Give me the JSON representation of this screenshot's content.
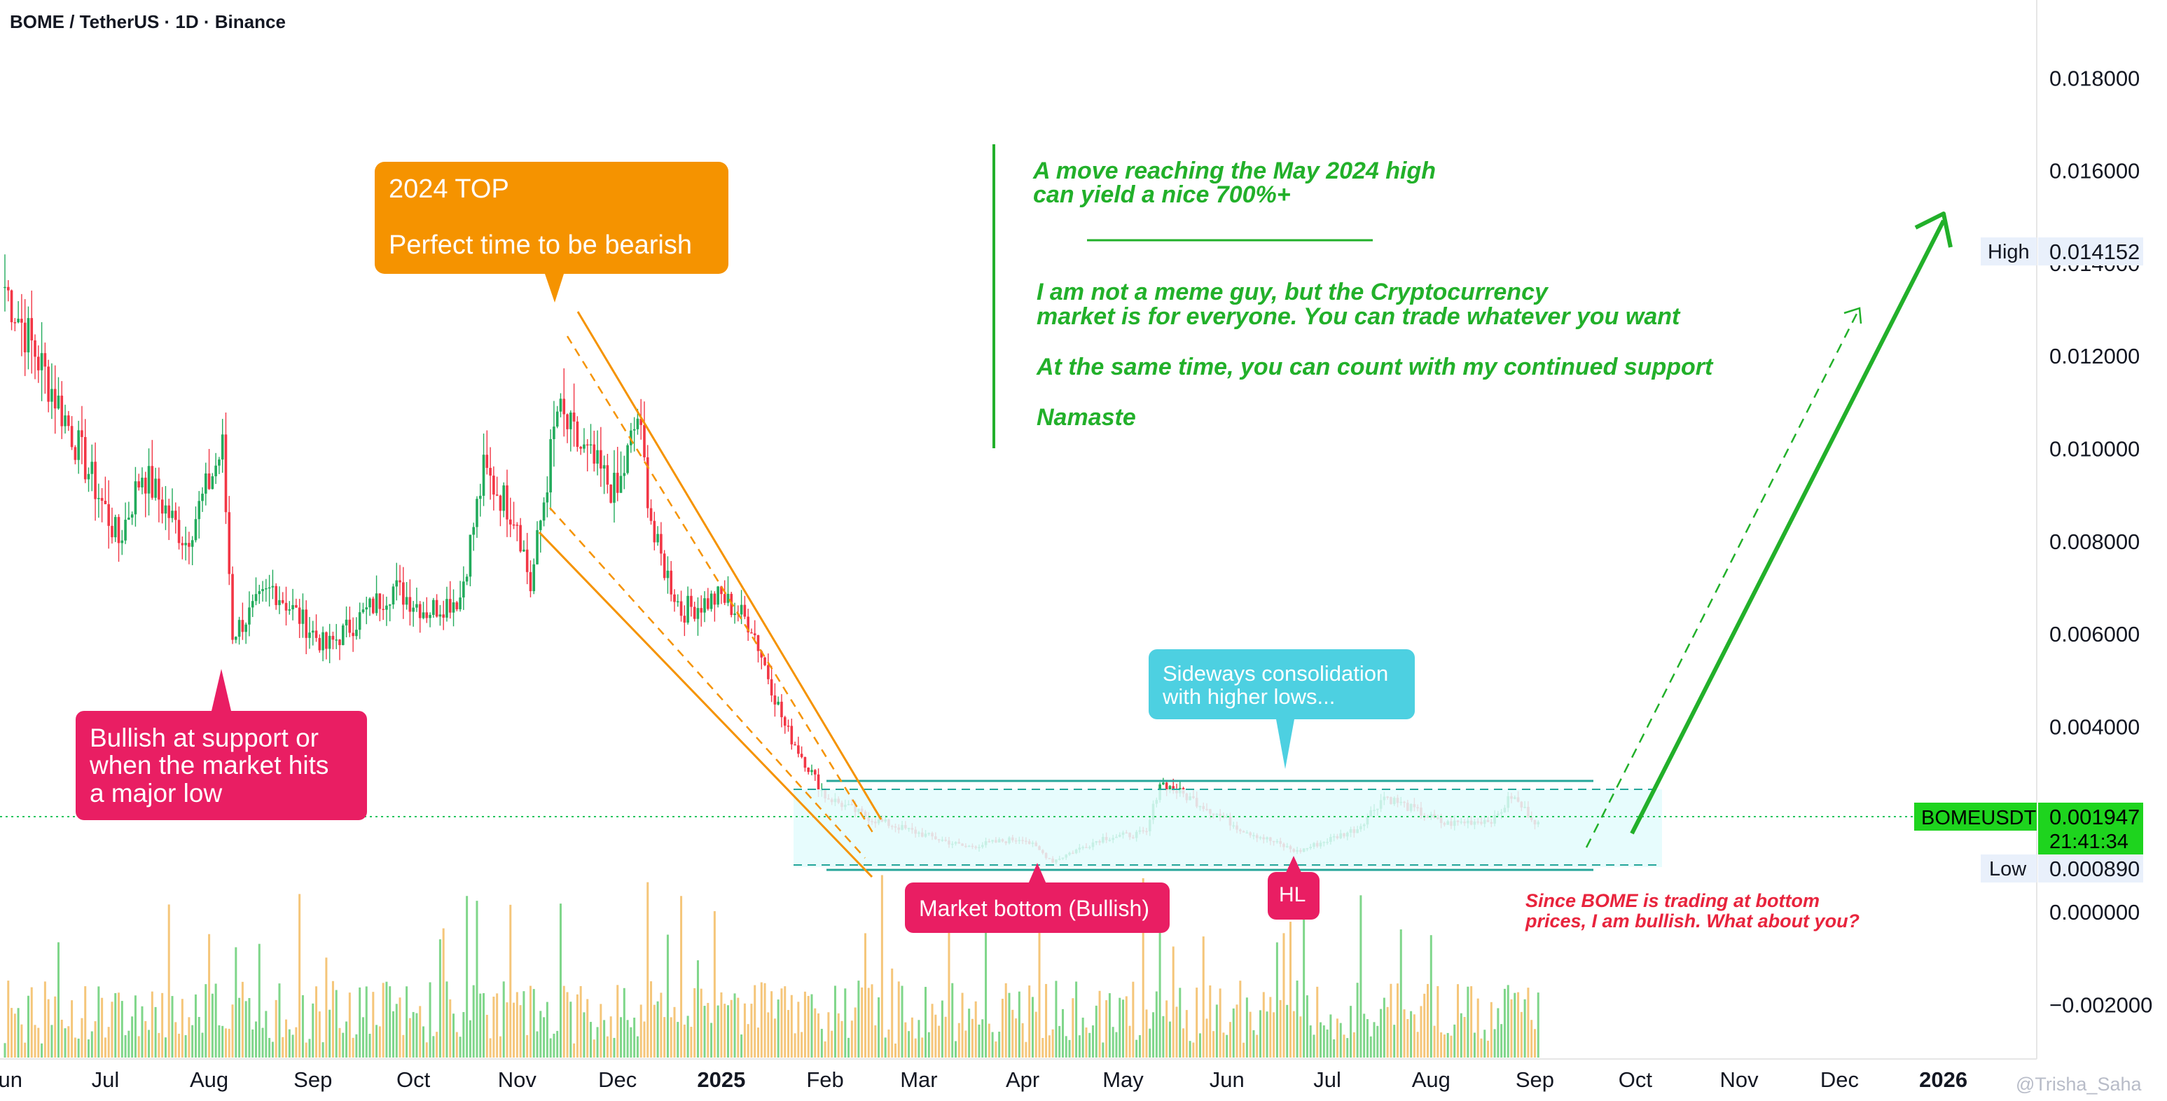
{
  "header": {
    "title": "BOME / TetherUS · 1D · Binance"
  },
  "watermark": "@Trisha_Saha",
  "price_axis": {
    "ticks": [
      "0.018000",
      "0.016000",
      "0.014000",
      "0.012000",
      "0.010000",
      "0.008000",
      "0.006000",
      "0.004000",
      "0.000000",
      "−0.002000"
    ],
    "high": {
      "label": "High",
      "value": "0.014152"
    },
    "low": {
      "label": "Low",
      "value": "0.000890"
    },
    "current": {
      "symbol": "BOMEUSDT",
      "value": "0.001947",
      "countdown": "21:41:34"
    }
  },
  "time_axis": {
    "labels": [
      "Jun",
      "Jul",
      "Aug",
      "Sep",
      "Oct",
      "Nov",
      "Dec",
      "2025",
      "Feb",
      "Mar",
      "Apr",
      "May",
      "Jun",
      "Jul",
      "Aug",
      "Sep",
      "Oct",
      "Nov",
      "Dec",
      "2026"
    ]
  },
  "annotations": {
    "top_callout": {
      "line1": "2024 TOP",
      "line2": "Perfect time to be bearish"
    },
    "support_callout": {
      "line1": "Bullish at support or",
      "line2": "when the market hits",
      "line3": "a major low"
    },
    "bottom_callout": "Market bottom (Bullish)",
    "hl_callout": "HL",
    "sideways_callout": {
      "line1": "Sideways consolidation",
      "line2": "with higher lows..."
    },
    "green_text": {
      "l1": "A move reaching the May 2024 high",
      "l2": "can yield a nice 700%+",
      "l3": "I am not a meme guy, but the Cryptocurrency",
      "l4": "market is for everyone. You can trade whatever you want",
      "l5": "At the same time, you can count with my continued support",
      "l6": "Namaste"
    },
    "red_text": {
      "l1": "Since BOME is trading at bottom",
      "l2": "prices, I am bullish. What about you?"
    }
  },
  "colors": {
    "up": "#26a69a",
    "candle_up": "#22ab5c",
    "candle_down": "#f23645",
    "volume_up": "#7fd68a",
    "volume_down": "#f5c67a",
    "orange": "#f59300",
    "pink": "#e91e63",
    "cyan": "#4dd0e1",
    "green_text": "#22b02a",
    "red_text": "#e8243d"
  },
  "chart_data": {
    "type": "candlestick",
    "title": "BOME / TetherUS · 1D · Binance",
    "y_unit": "USDT",
    "ylim": [
      -0.0025,
      0.0195
    ],
    "grid": false,
    "x_range": [
      "2024-05-27",
      "2026-01-20"
    ],
    "key_points": [
      {
        "date": "2024-06-01",
        "close": 0.0135
      },
      {
        "date": "2024-06-20",
        "close": 0.0105
      },
      {
        "date": "2024-07-05",
        "close": 0.008
      },
      {
        "date": "2024-07-12",
        "close": 0.0095
      },
      {
        "date": "2024-07-25",
        "close": 0.008
      },
      {
        "date": "2024-08-05",
        "close": 0.01
      },
      {
        "date": "2024-08-08",
        "close": 0.006
      },
      {
        "date": "2024-08-20",
        "close": 0.007
      },
      {
        "date": "2024-09-05",
        "close": 0.0057
      },
      {
        "date": "2024-09-25",
        "close": 0.007
      },
      {
        "date": "2024-10-05",
        "close": 0.0065
      },
      {
        "date": "2024-10-15",
        "close": 0.0068
      },
      {
        "date": "2024-10-22",
        "close": 0.0095
      },
      {
        "date": "2024-11-01",
        "close": 0.0085
      },
      {
        "date": "2024-11-05",
        "close": 0.007
      },
      {
        "date": "2024-11-13",
        "close": 0.0108
      },
      {
        "date": "2024-11-20",
        "close": 0.01
      },
      {
        "date": "2024-12-01",
        "close": 0.009
      },
      {
        "date": "2024-12-07",
        "close": 0.0107
      },
      {
        "date": "2024-12-12",
        "close": 0.008
      },
      {
        "date": "2024-12-20",
        "close": 0.0065
      },
      {
        "date": "2025-01-01",
        "close": 0.0068
      },
      {
        "date": "2025-01-10",
        "close": 0.0062
      },
      {
        "date": "2025-01-20",
        "close": 0.004
      },
      {
        "date": "2025-02-01",
        "close": 0.0025
      },
      {
        "date": "2025-02-15",
        "close": 0.002
      },
      {
        "date": "2025-03-01",
        "close": 0.0017
      },
      {
        "date": "2025-03-15",
        "close": 0.0014
      },
      {
        "date": "2025-04-01",
        "close": 0.0016
      },
      {
        "date": "2025-04-10",
        "close": 0.0011
      },
      {
        "date": "2025-04-25",
        "close": 0.0016
      },
      {
        "date": "2025-05-08",
        "close": 0.0017
      },
      {
        "date": "2025-05-12",
        "close": 0.0028
      },
      {
        "date": "2025-05-25",
        "close": 0.0023
      },
      {
        "date": "2025-06-05",
        "close": 0.0018
      },
      {
        "date": "2025-06-22",
        "close": 0.0013
      },
      {
        "date": "2025-07-10",
        "close": 0.0018
      },
      {
        "date": "2025-07-18",
        "close": 0.0025
      },
      {
        "date": "2025-08-05",
        "close": 0.0019
      },
      {
        "date": "2025-08-20",
        "close": 0.002
      },
      {
        "date": "2025-08-25",
        "close": 0.0025
      },
      {
        "date": "2025-09-02",
        "close": 0.0019
      }
    ],
    "levels": {
      "current": 0.001947,
      "high": 0.014152,
      "low": 0.00089,
      "range_box": [
        0.0009,
        0.0026
      ]
    }
  }
}
